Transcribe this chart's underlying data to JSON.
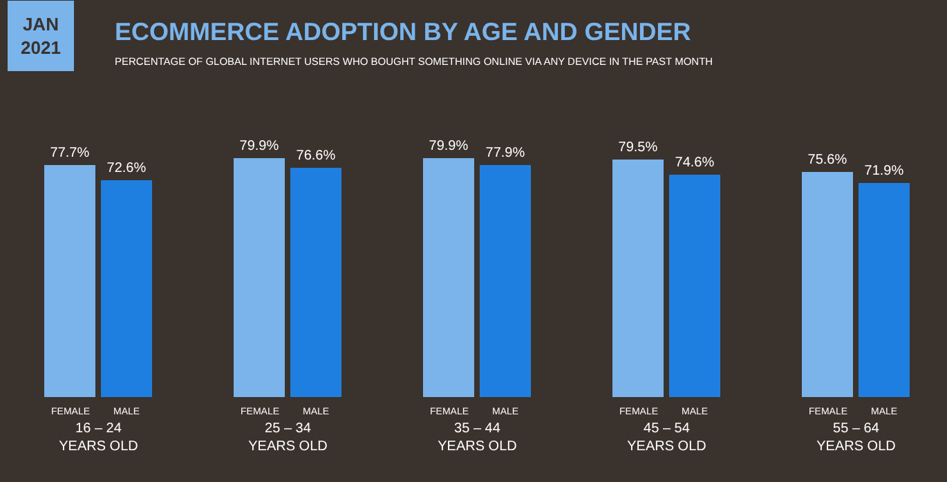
{
  "chart_data": {
    "type": "bar",
    "title": "ECOMMERCE ADOPTION BY AGE AND GENDER",
    "subtitle": "PERCENTAGE OF GLOBAL INTERNET USERS WHO BOUGHT SOMETHING ONLINE VIA ANY DEVICE IN THE PAST MONTH",
    "annotations": [
      "JAN\n2021"
    ],
    "categories": [
      "16 – 24\nYEARS OLD",
      "25 – 34\nYEARS OLD",
      "35 – 44\nYEARS OLD",
      "45 – 54\nYEARS OLD",
      "55 – 64\nYEARS OLD"
    ],
    "series": [
      {
        "name": "FEMALE",
        "color": "#7ab4ea",
        "values": [
          77.7,
          79.9,
          79.9,
          79.5,
          75.6
        ],
        "value_labels": [
          "77.7%",
          "79.9%",
          "79.9%",
          "79.5%",
          "75.6%"
        ]
      },
      {
        "name": "MALE",
        "color": "#1f7fe0",
        "values": [
          72.6,
          76.6,
          77.9,
          74.6,
          71.9
        ],
        "value_labels": [
          "72.6%",
          "76.6%",
          "77.9%",
          "74.6%",
          "71.9%"
        ]
      }
    ],
    "grid": false,
    "legend": false
  }
}
